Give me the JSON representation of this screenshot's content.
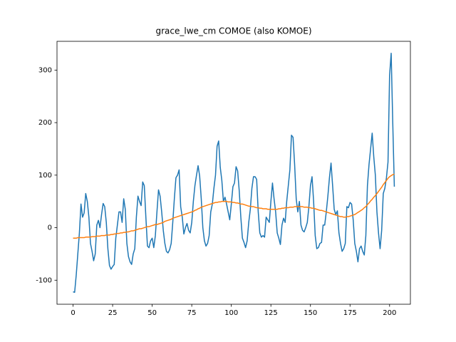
{
  "chart_data": {
    "type": "line",
    "title": "grace_lwe_cm COMOE (also KOMOE)",
    "x": [
      0,
      1,
      2,
      3,
      4,
      5,
      6,
      7,
      8,
      9,
      10,
      11,
      12,
      13,
      14,
      15,
      16,
      17,
      18,
      19,
      20,
      21,
      22,
      23,
      24,
      25,
      26,
      27,
      28,
      29,
      30,
      31,
      32,
      33,
      34,
      35,
      36,
      37,
      38,
      39,
      40,
      41,
      42,
      43,
      44,
      45,
      46,
      47,
      48,
      49,
      50,
      51,
      52,
      53,
      54,
      55,
      56,
      57,
      58,
      59,
      60,
      61,
      62,
      63,
      64,
      65,
      66,
      67,
      68,
      69,
      70,
      71,
      72,
      73,
      74,
      75,
      76,
      77,
      78,
      79,
      80,
      81,
      82,
      83,
      84,
      85,
      86,
      87,
      88,
      89,
      90,
      91,
      92,
      93,
      94,
      95,
      96,
      97,
      98,
      99,
      100,
      101,
      102,
      103,
      104,
      105,
      106,
      107,
      108,
      109,
      110,
      111,
      112,
      113,
      114,
      115,
      116,
      117,
      118,
      119,
      120,
      121,
      122,
      123,
      124,
      125,
      126,
      127,
      128,
      129,
      130,
      131,
      132,
      133,
      134,
      135,
      136,
      137,
      138,
      139,
      140,
      141,
      142,
      143,
      144,
      145,
      146,
      147,
      148,
      149,
      150,
      151,
      152,
      153,
      154,
      155,
      156,
      157,
      158,
      159,
      160,
      161,
      162,
      163,
      164,
      165,
      166,
      167,
      168,
      169,
      170,
      171,
      172,
      173,
      174,
      175,
      176,
      177,
      178,
      179,
      180,
      181,
      182,
      183,
      184,
      185,
      186,
      187,
      188,
      189,
      190,
      191,
      192,
      193,
      194,
      195,
      196,
      197,
      198,
      199,
      200,
      201,
      202,
      203
    ],
    "series": [
      {
        "color": "#1f77b4",
        "values": [
          -122,
          -123,
          -90,
          -50,
          -10,
          45,
          20,
          28,
          65,
          50,
          20,
          -30,
          -45,
          -63,
          -50,
          5,
          14,
          0,
          25,
          46,
          40,
          10,
          -40,
          -72,
          -79,
          -74,
          -70,
          -20,
          5,
          30,
          30,
          10,
          55,
          35,
          -30,
          -55,
          -65,
          -70,
          -50,
          -40,
          20,
          60,
          50,
          42,
          87,
          80,
          20,
          -35,
          -38,
          -25,
          -20,
          -38,
          -15,
          30,
          72,
          60,
          30,
          -5,
          -30,
          -45,
          -48,
          -42,
          -30,
          10,
          55,
          95,
          100,
          110,
          40,
          20,
          -12,
          0,
          8,
          -5,
          -10,
          10,
          50,
          80,
          100,
          118,
          98,
          55,
          0,
          -25,
          -35,
          -30,
          -15,
          30,
          45,
          75,
          100,
          155,
          165,
          115,
          90,
          50,
          58,
          45,
          30,
          15,
          45,
          78,
          85,
          116,
          108,
          70,
          20,
          -20,
          -28,
          -38,
          -25,
          10,
          35,
          75,
          97,
          97,
          92,
          30,
          -10,
          -18,
          -15,
          -18,
          20,
          15,
          10,
          50,
          85,
          55,
          30,
          -10,
          -20,
          -32,
          5,
          18,
          10,
          50,
          80,
          110,
          176,
          172,
          120,
          55,
          30,
          50,
          5,
          -5,
          -8,
          0,
          10,
          40,
          80,
          97,
          50,
          -15,
          -40,
          -38,
          -30,
          -28,
          5,
          5,
          30,
          60,
          95,
          123,
          80,
          35,
          25,
          32,
          -10,
          -30,
          -45,
          -40,
          -30,
          40,
          38,
          48,
          45,
          15,
          -30,
          -45,
          -65,
          -40,
          -35,
          -45,
          -52,
          -15,
          80,
          120,
          150,
          180,
          135,
          100,
          30,
          -10,
          -40,
          -5,
          65,
          75,
          95,
          125,
          290,
          332,
          200,
          78
        ]
      },
      {
        "color": "#ff7f0e",
        "values": [
          -20,
          -20,
          -20,
          -19,
          -19,
          -19,
          -19,
          -19,
          -18,
          -18,
          -18,
          -18,
          -17,
          -17,
          -17,
          -16,
          -16,
          -16,
          -15,
          -15,
          -15,
          -14,
          -14,
          -14,
          -13,
          -13,
          -12,
          -12,
          -11,
          -11,
          -10,
          -10,
          -9,
          -9,
          -8,
          -8,
          -7,
          -6,
          -6,
          -5,
          -4,
          -3,
          -2,
          -2,
          -1,
          0,
          1,
          2,
          2,
          3,
          4,
          5,
          6,
          6,
          7,
          8,
          9,
          10,
          12,
          13,
          14,
          15,
          16,
          18,
          19,
          20,
          21,
          22,
          23,
          24,
          25,
          26,
          27,
          28,
          29,
          30,
          31,
          33,
          34,
          36,
          37,
          39,
          40,
          41,
          42,
          43,
          44,
          45,
          46,
          47,
          48,
          48,
          49,
          49,
          50,
          50,
          50,
          50,
          49,
          49,
          49,
          48,
          48,
          47,
          47,
          46,
          45,
          45,
          44,
          43,
          42,
          41,
          41,
          40,
          40,
          39,
          38,
          38,
          37,
          37,
          36,
          36,
          36,
          35,
          35,
          35,
          35,
          35,
          35,
          35,
          36,
          36,
          37,
          37,
          38,
          38,
          38,
          39,
          39,
          39,
          40,
          40,
          40,
          40,
          40,
          40,
          39,
          39,
          39,
          38,
          38,
          37,
          37,
          36,
          35,
          34,
          33,
          33,
          32,
          31,
          30,
          29,
          28,
          27,
          26,
          25,
          24,
          23,
          22,
          21,
          21,
          20,
          20,
          21,
          21,
          22,
          23,
          24,
          25,
          27,
          29,
          31,
          33,
          35,
          38,
          40,
          44,
          47,
          51,
          54,
          58,
          61,
          65,
          69,
          73,
          77,
          82,
          86,
          90,
          94,
          97,
          99,
          101,
          102
        ]
      }
    ],
    "xlim": [
      -10.15,
      213.15
    ],
    "xticks": [
      0,
      25,
      50,
      75,
      100,
      125,
      150,
      175,
      200
    ],
    "ylim": [
      -145.75,
      354.75
    ],
    "yticks": [
      -100,
      0,
      100,
      200,
      300
    ]
  }
}
